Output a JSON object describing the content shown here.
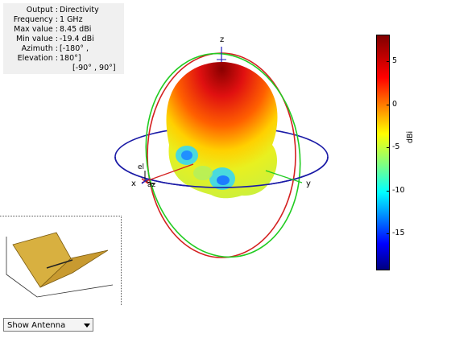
{
  "info": {
    "rows": [
      {
        "key": "Output",
        "value": "Directivity"
      },
      {
        "key": "Frequency",
        "value": "1 GHz"
      },
      {
        "key": "Max value",
        "value": "8.45 dBi"
      },
      {
        "key": "Min value",
        "value": "-19.4 dBi"
      },
      {
        "key": "Azimuth",
        "value": "[-180° ,"
      },
      {
        "key": "Elevation",
        "value": "180°]"
      }
    ],
    "extra": "[-90° , 90°]"
  },
  "axes": {
    "x": "x",
    "y": "y",
    "z": "z",
    "el": "el",
    "az": "az"
  },
  "colorbar": {
    "unit": "dBi",
    "ticks": [
      {
        "label": "5",
        "value": 5
      },
      {
        "label": "0",
        "value": 0
      },
      {
        "label": "-5",
        "value": -5
      },
      {
        "label": "-10",
        "value": -10
      },
      {
        "label": "-15",
        "value": -15
      }
    ],
    "max": 8.45,
    "min": -19.4
  },
  "dropdown": {
    "selected": "Show Antenna"
  },
  "colors": {
    "ring_azimuth": "#1a1aa6",
    "ring_red": "#d42020",
    "ring_green": "#22cc22"
  }
}
